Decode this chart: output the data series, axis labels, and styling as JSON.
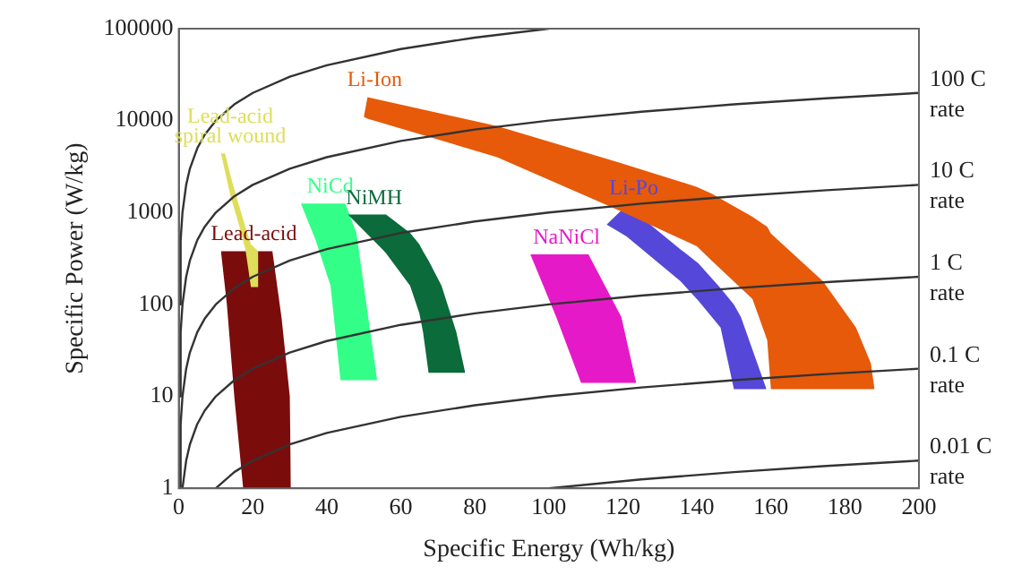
{
  "chart_data": {
    "type": "line",
    "xlabel": "Specific Energy (Wh/kg)",
    "ylabel": "Specific Power (W/kg)",
    "xlim": [
      0,
      200
    ],
    "ylim": [
      1,
      100000
    ],
    "log": "y",
    "xticks": [
      0,
      20,
      40,
      60,
      80,
      100,
      120,
      140,
      160,
      180,
      200
    ],
    "yticks": [
      1,
      10,
      100,
      1000,
      10000,
      100000
    ],
    "grid": false,
    "legend": false,
    "marker": "none",
    "line_style": "solid",
    "series": [
      {
        "color": "#333333",
        "x": [
          0.1,
          0.5,
          1,
          2,
          3,
          5,
          7,
          10,
          15,
          20,
          30,
          40,
          60,
          80,
          100
        ],
        "values": [
          100,
          500,
          1000,
          2000,
          3000,
          5000,
          7000,
          10000,
          15000,
          20000,
          30000,
          40000,
          60000,
          80000,
          100000
        ]
      },
      {
        "name": "100 C rate",
        "color": "#333333",
        "x": [
          0.1,
          0.5,
          1,
          2,
          3,
          5,
          7,
          10,
          15,
          20,
          30,
          40,
          60,
          80,
          100,
          125,
          150,
          175,
          200
        ],
        "values": [
          10,
          50,
          100,
          200,
          300,
          500,
          700,
          1000,
          1500,
          2000,
          3000,
          4000,
          6000,
          8000,
          10000,
          12500,
          15000,
          17500,
          20000
        ]
      },
      {
        "name": "10 C rate",
        "color": "#333333",
        "x": [
          0.1,
          0.5,
          1,
          2,
          3,
          5,
          7,
          10,
          15,
          20,
          30,
          40,
          60,
          80,
          100,
          125,
          150,
          175,
          200
        ],
        "values": [
          1,
          5,
          10,
          20,
          30,
          50,
          70,
          100,
          150,
          200,
          300,
          400,
          600,
          800,
          1000,
          1250,
          1500,
          1750,
          2000
        ]
      },
      {
        "name": "1 C rate",
        "color": "#333333",
        "x": [
          1,
          2,
          3,
          5,
          7,
          10,
          15,
          20,
          30,
          40,
          60,
          80,
          100,
          125,
          150,
          175,
          200
        ],
        "values": [
          1,
          2,
          3,
          5,
          7,
          10,
          15,
          20,
          30,
          40,
          60,
          80,
          100,
          125,
          150,
          175,
          200
        ]
      },
      {
        "name": "0.1 C rate",
        "color": "#333333",
        "x": [
          10,
          15,
          20,
          30,
          40,
          60,
          80,
          100,
          125,
          150,
          175,
          200
        ],
        "values": [
          1,
          1.5,
          2,
          3,
          4,
          6,
          8,
          10,
          12.5,
          15,
          17.5,
          20
        ]
      },
      {
        "name": "0.01 C rate",
        "color": "#333333",
        "x": [
          100,
          125,
          150,
          175,
          200
        ],
        "values": [
          1,
          1.25,
          1.5,
          1.75,
          2
        ]
      },
      {
        "name": "Lead-acid",
        "color": "#7b0c0c",
        "x": [
          11.4,
          13,
          15,
          17.4,
          25.3,
          27.8,
          30,
          30.3
        ],
        "values": [
          null,
          null,
          null,
          null,
          null,
          null,
          null,
          null
        ],
        "upper": [
          380,
          380,
          380,
          380,
          380,
          70,
          10,
          1
        ],
        "lower": [
          380,
          100,
          10,
          1,
          1,
          1,
          1,
          1
        ]
      },
      {
        "name": "Lead-acid spiral wound",
        "color": "#dede5a",
        "x": [
          11.4,
          12.5,
          14,
          16,
          18,
          19.5,
          21.5
        ],
        "values": [
          null,
          null,
          null,
          null,
          null,
          null,
          null
        ],
        "upper": [
          4400,
          4400,
          2500,
          1300,
          700,
          450,
          380
        ],
        "lower": [
          4400,
          2800,
          1500,
          800,
          400,
          155,
          155
        ]
      },
      {
        "name": "NiCd",
        "color": "#33ff88",
        "x": [
          33,
          37,
          41,
          43.7,
          45,
          48,
          50,
          53.6
        ],
        "values": [
          null,
          null,
          null,
          null,
          null,
          null,
          null,
          null
        ],
        "upper": [
          1250,
          1250,
          1250,
          1250,
          1250,
          600,
          160,
          15
        ],
        "lower": [
          1250,
          500,
          160,
          15,
          15,
          15,
          15,
          15
        ]
      },
      {
        "name": "NiMH",
        "color": "#0b6b3a",
        "x": [
          45.7,
          55,
          56,
          62.5,
          65,
          66,
          67.5,
          71,
          75,
          77.4
        ],
        "values": [
          null,
          null,
          null,
          null,
          null,
          null,
          null,
          null,
          null,
          null
        ],
        "upper": [
          950,
          950,
          950,
          600,
          450,
          380,
          300,
          160,
          50,
          18
        ],
        "lower": [
          950,
          400,
          360,
          160,
          80,
          50,
          18,
          18,
          18,
          18
        ]
      },
      {
        "name": "NaNiCl",
        "color": "#e619c8",
        "x": [
          95,
          102,
          108.7,
          110.7,
          119.6,
          123.6
        ],
        "values": [
          null,
          null,
          null,
          null,
          null,
          null
        ],
        "upper": [
          350,
          350,
          350,
          350,
          73,
          14
        ],
        "lower": [
          350,
          73,
          14,
          14,
          14,
          14
        ]
      },
      {
        "name": "Li-Po",
        "color": "#5548d8",
        "x": [
          115.6,
          121,
          135.5,
          140.4,
          146.4,
          150,
          151.9,
          158.8
        ],
        "values": [
          null,
          null,
          null,
          null,
          null,
          null,
          null,
          null
        ],
        "upper": [
          740,
          1200,
          400,
          280,
          150,
          100,
          73,
          12
        ],
        "lower": [
          740,
          550,
          180,
          110,
          56,
          12,
          12,
          12
        ]
      },
      {
        "name": "Li-Ion",
        "color": "#e65a0a",
        "x": [
          50,
          51,
          86,
          119,
          140,
          144,
          155,
          159,
          160,
          174,
          183,
          187,
          188
        ],
        "values": [
          null,
          null,
          null,
          null,
          null,
          null,
          null,
          null,
          null,
          null,
          null,
          null,
          null
        ],
        "upper": [
          11000,
          18000,
          8700,
          3500,
          1900,
          1600,
          900,
          700,
          590,
          180,
          56,
          23,
          12
        ],
        "lower": [
          11000,
          10500,
          4000,
          1050,
          430,
          300,
          115,
          41,
          12,
          12,
          12,
          12,
          12
        ]
      }
    ]
  }
}
